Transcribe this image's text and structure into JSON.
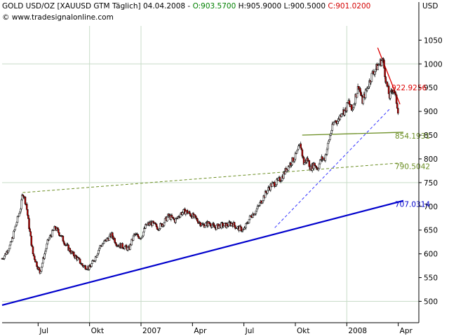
{
  "header": {
    "instrument": "GOLD USD/OZ [XAUUSD GTM",
    "interval": "Täglich]",
    "date": "04.04.2008",
    "open_label": "O:903.5700",
    "high_label": "H:905.9000",
    "low_label": "L:900.5000",
    "close_label": "C:901.0200",
    "website": "© www.tradesignalonline.com",
    "unit": "USD"
  },
  "colors": {
    "background": "#ffffff",
    "grid": "#c8dcc8",
    "open": "#008000",
    "high": "#000000",
    "low": "#000000",
    "close": "#d40000",
    "up_candle": "#ffffff",
    "down_candle": "#c00000",
    "main_trend": "#0000cc",
    "green_line": "#6b8e23",
    "red_line": "#dd0000",
    "dashed_blue": "#3333ff"
  },
  "chart_data": {
    "type": "line",
    "title": "GOLD USD/OZ [XAUUSD GTM Täglich]",
    "ylabel": "USD",
    "ylim": [
      455,
      1080
    ],
    "grid": true,
    "x_ticks": [
      "Jul",
      "Okt",
      "2007",
      "Apr",
      "Jul",
      "Okt",
      "2008",
      "Apr"
    ],
    "x_tick_months": [
      1.0,
      4.0,
      7.0,
      10.0,
      13.0,
      16.0,
      19.0,
      22.0
    ],
    "x_range_months": [
      -1.1,
      23.2
    ],
    "y_ticks": [
      500,
      550,
      600,
      650,
      700,
      750,
      800,
      850,
      900,
      950,
      1000,
      1050
    ],
    "grid_y": [
      500,
      750,
      1000
    ],
    "grid_x_labels": [
      "2007",
      "Okt",
      "2008"
    ],
    "x_origin": "2006-06",
    "price_series": {
      "name": "GOLD USD/OZ",
      "x_month": [
        -1.1,
        -0.9,
        -0.6,
        -0.3,
        0.0,
        0.1,
        0.3,
        0.5,
        0.7,
        0.9,
        1.1,
        1.3,
        1.6,
        2.0,
        2.3,
        2.6,
        3.0,
        3.3,
        3.6,
        4.0,
        4.3,
        4.6,
        5.0,
        5.3,
        5.6,
        6.0,
        6.3,
        6.6,
        7.0,
        7.3,
        7.6,
        8.0,
        8.3,
        8.6,
        9.0,
        9.3,
        9.6,
        10.0,
        10.3,
        10.6,
        11.0,
        11.3,
        11.6,
        12.0,
        12.3,
        12.6,
        13.0,
        13.4,
        13.7,
        14.0,
        14.3,
        14.6,
        14.9,
        15.2,
        15.5,
        15.7,
        16.0,
        16.3,
        16.5,
        16.7,
        16.9,
        17.1,
        17.3,
        17.5,
        17.7,
        17.9,
        18.1,
        18.3,
        18.5,
        18.7,
        18.9,
        19.1,
        19.3,
        19.5,
        19.7,
        19.9,
        20.1,
        20.3,
        20.5,
        20.7,
        20.9,
        21.1,
        21.3,
        21.5,
        21.7,
        21.9,
        22.0
      ],
      "close": [
        590,
        600,
        620,
        660,
        700,
        730,
        705,
        650,
        600,
        580,
        560,
        590,
        630,
        655,
        640,
        620,
        600,
        590,
        575,
        570,
        590,
        615,
        630,
        640,
        620,
        615,
        610,
        640,
        635,
        660,
        665,
        655,
        665,
        680,
        670,
        685,
        690,
        680,
        670,
        660,
        665,
        655,
        660,
        660,
        665,
        655,
        650,
        680,
        690,
        710,
        730,
        745,
        750,
        760,
        780,
        790,
        805,
        830,
        790,
        800,
        780,
        790,
        780,
        800,
        800,
        830,
        860,
        880,
        880,
        900,
        900,
        920,
        900,
        930,
        955,
        920,
        940,
        960,
        980,
        990,
        1000,
        1010,
        960,
        930,
        950,
        920,
        900
      ]
    },
    "trend_lines": [
      {
        "kind": "main-support",
        "from": [
          -1.1,
          492
        ],
        "to": [
          22.3,
          712
        ],
        "label": "707.0314"
      },
      {
        "kind": "upper-dashed",
        "from": [
          0.1,
          729
        ],
        "to": [
          22.3,
          792
        ],
        "label": "790.5042"
      },
      {
        "kind": "green-horizontal",
        "from": [
          16.4,
          850
        ],
        "to": [
          22.3,
          856
        ],
        "label": "854.1931"
      },
      {
        "kind": "blue-dashed",
        "from": [
          14.8,
          655
        ],
        "to": [
          21.5,
          905
        ],
        "label": ""
      },
      {
        "kind": "red-resistance",
        "from": [
          20.8,
          1034
        ],
        "to": [
          22.1,
          915
        ],
        "label": "922.9256"
      }
    ]
  }
}
